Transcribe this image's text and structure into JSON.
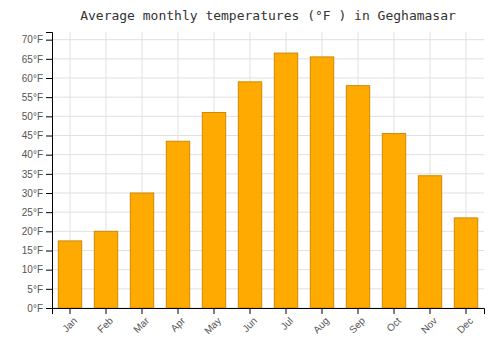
{
  "chart_data": {
    "type": "bar",
    "title": "Average monthly temperatures (°F ) in Geghamasar",
    "categories": [
      "Jan",
      "Feb",
      "Mar",
      "Apr",
      "May",
      "Jun",
      "Jul",
      "Aug",
      "Sep",
      "Oct",
      "Nov",
      "Dec"
    ],
    "values": [
      17.5,
      20.0,
      30.0,
      43.5,
      51.0,
      59.0,
      66.5,
      65.5,
      58.0,
      45.5,
      34.5,
      23.5
    ],
    "color": "#FFAA00",
    "ylim": [
      0,
      72
    ],
    "yticks": [
      {
        "value": 0,
        "label": "0°F"
      },
      {
        "value": 5,
        "label": "5°F"
      },
      {
        "value": 10,
        "label": "10°F"
      },
      {
        "value": 15,
        "label": "15°F"
      },
      {
        "value": 20,
        "label": "20°F"
      },
      {
        "value": 25,
        "label": "25°F"
      },
      {
        "value": 30,
        "label": "30°F"
      },
      {
        "value": 35,
        "label": "35°F"
      },
      {
        "value": 40,
        "label": "40°F"
      },
      {
        "value": 45,
        "label": "45°F"
      },
      {
        "value": 50,
        "label": "50°F"
      },
      {
        "value": 55,
        "label": "55°F"
      },
      {
        "value": 60,
        "label": "60°F"
      },
      {
        "value": 65,
        "label": "65°F"
      },
      {
        "value": 70,
        "label": "70°F"
      }
    ],
    "grid": true
  }
}
